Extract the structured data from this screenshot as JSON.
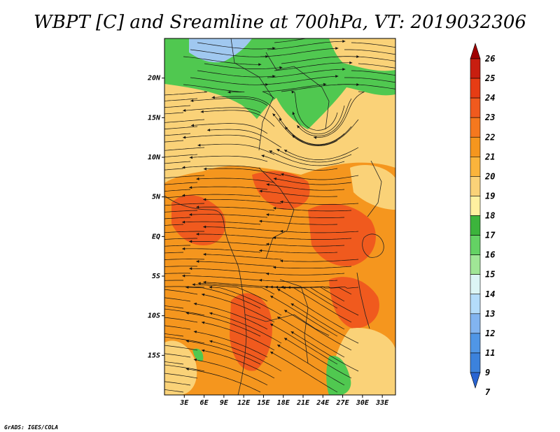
{
  "title": "WBPT [C] and Sreamline at 700hPa, VT: 2019032306",
  "credit": "GrADS: IGES/COLA",
  "map": {
    "variable": "Wet-bulb potential temperature (WBPT) with streamlines",
    "level": "700hPa",
    "valid_time": "2019032306",
    "lon_range": [
      0,
      35
    ],
    "lat_range": [
      -20,
      25
    ]
  },
  "axes": {
    "lat_ticks": [
      {
        "label": "20N",
        "value": 20
      },
      {
        "label": "15N",
        "value": 15
      },
      {
        "label": "10N",
        "value": 10
      },
      {
        "label": "5N",
        "value": 5
      },
      {
        "label": "EQ",
        "value": 0
      },
      {
        "label": "5S",
        "value": -5
      },
      {
        "label": "10S",
        "value": -10
      },
      {
        "label": "15S",
        "value": -15
      }
    ],
    "lon_ticks": [
      {
        "label": "3E",
        "value": 3
      },
      {
        "label": "6E",
        "value": 6
      },
      {
        "label": "9E",
        "value": 9
      },
      {
        "label": "12E",
        "value": 12
      },
      {
        "label": "15E",
        "value": 15
      },
      {
        "label": "18E",
        "value": 18
      },
      {
        "label": "21E",
        "value": 21
      },
      {
        "label": "24E",
        "value": 24
      },
      {
        "label": "27E",
        "value": 27
      },
      {
        "label": "30E",
        "value": 30
      },
      {
        "label": "33E",
        "value": 33
      }
    ]
  },
  "colorbar": {
    "labels": [
      "26",
      "25",
      "24",
      "23",
      "22",
      "21",
      "20",
      "19",
      "18",
      "17",
      "16",
      "15",
      "14",
      "13",
      "12",
      "11",
      "9",
      "7"
    ],
    "colors": [
      "#a00000",
      "#c81e10",
      "#e63c14",
      "#f05a1e",
      "#f5781e",
      "#f5961e",
      "#fab43c",
      "#fad278",
      "#fff0a0",
      "#3cb43c",
      "#64d264",
      "#a0e696",
      "#dcf5f5",
      "#b4dcfa",
      "#82b4f0",
      "#5096e6",
      "#3c82dc",
      "#2864d2"
    ]
  },
  "fields": {
    "land_color": "#f5961e",
    "hot_color": "#f05a1e",
    "cool_color": "#fad278",
    "green_color": "#50c850",
    "blue_color": "#a0c8f0"
  }
}
